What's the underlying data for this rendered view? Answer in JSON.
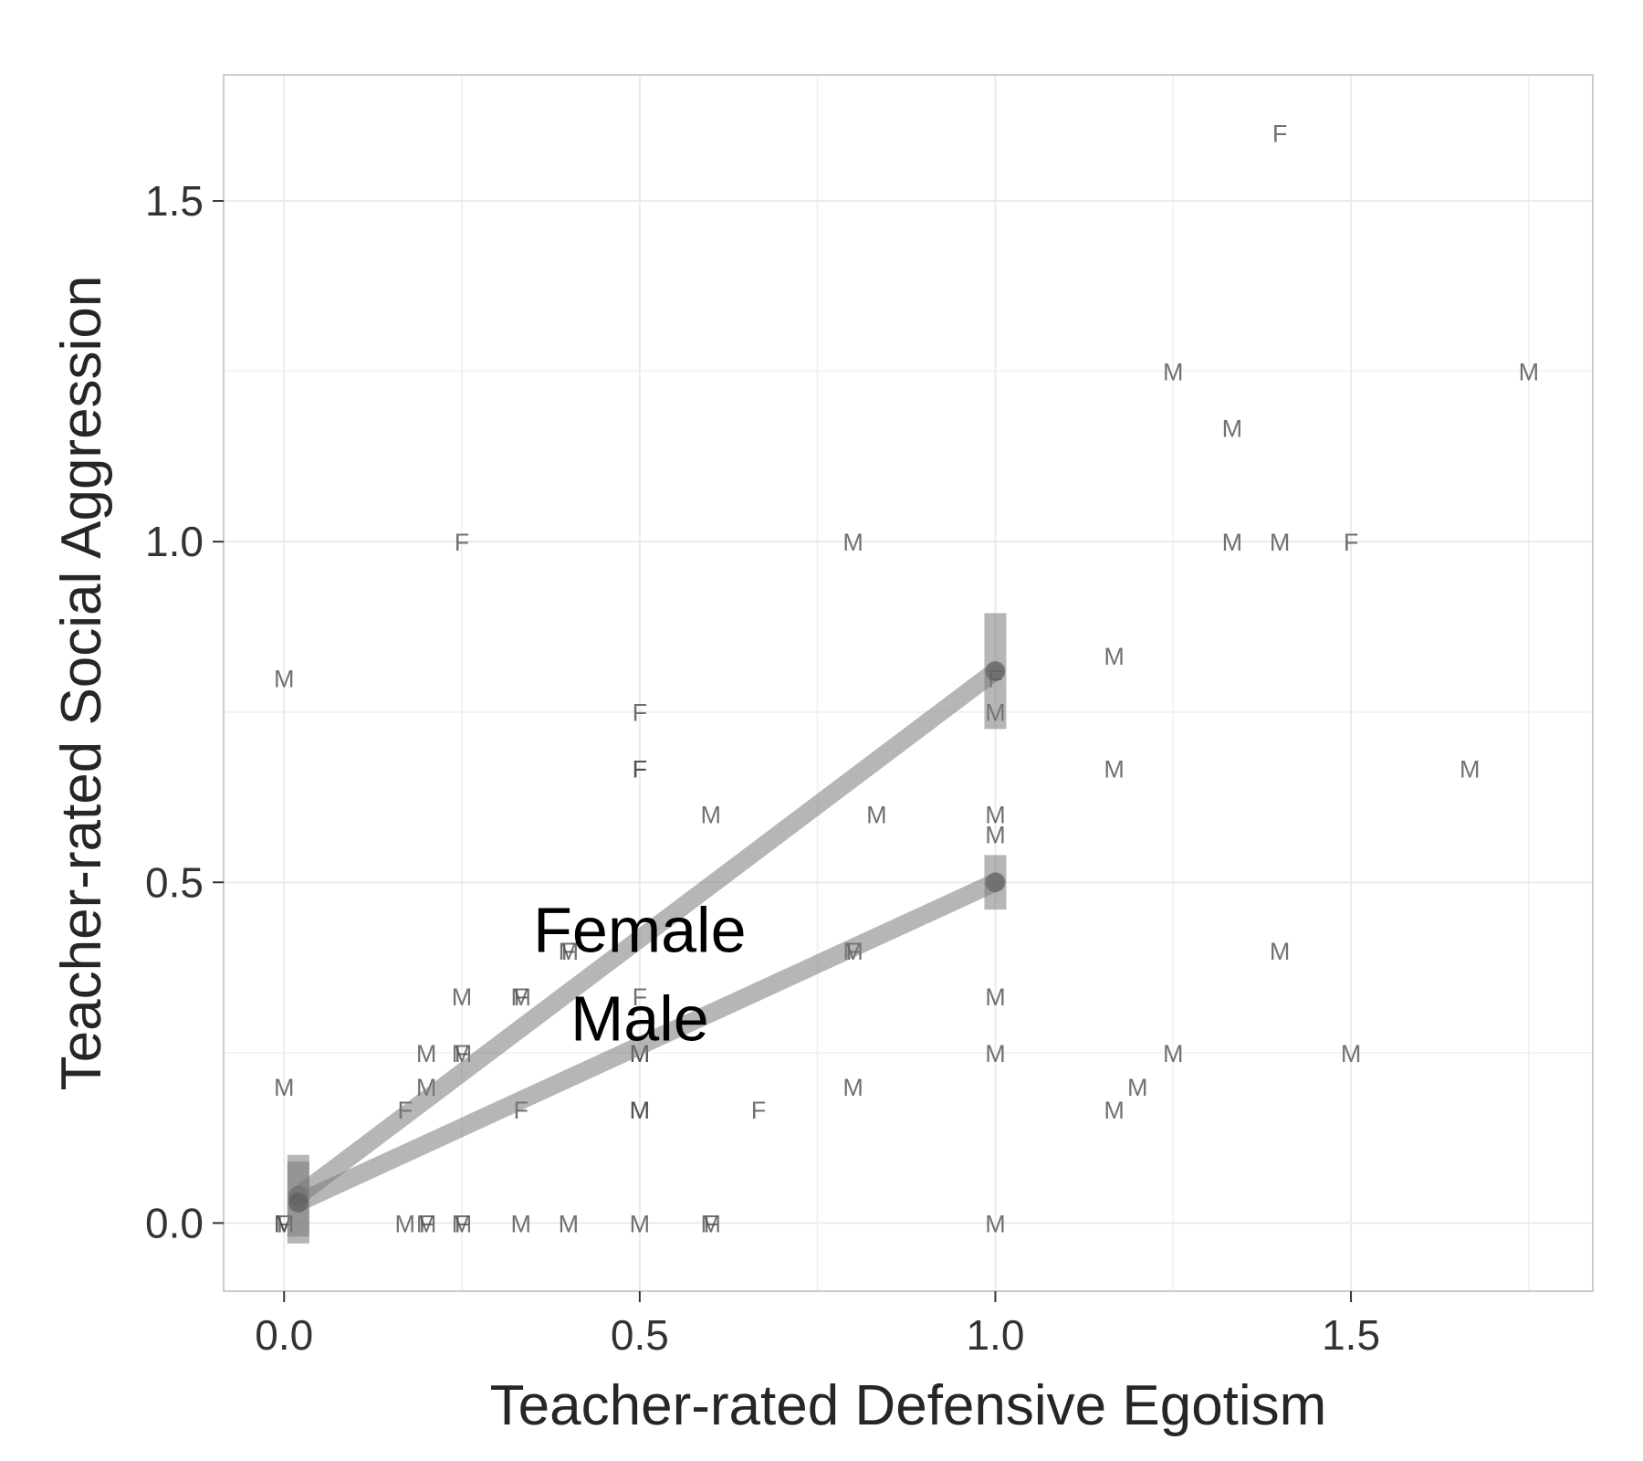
{
  "chart_data": {
    "type": "scatter",
    "title": "",
    "xlabel": "Teacher-rated Defensive Egotism",
    "ylabel": "Teacher-rated Social Aggression",
    "xlim": [
      -0.085,
      1.84
    ],
    "ylim": [
      -0.1,
      1.685
    ],
    "x_ticks": [
      "0.0",
      "0.5",
      "1.0",
      "1.5"
    ],
    "y_ticks": [
      "0.0",
      "0.5",
      "1.0",
      "1.5"
    ],
    "grid": true,
    "legend": "none",
    "points": [
      {
        "x": 0.0,
        "y": 0.0,
        "label": "M"
      },
      {
        "x": 0.0,
        "y": 0.0,
        "label": "F"
      },
      {
        "x": 0.0,
        "y": 0.0,
        "label": "M"
      },
      {
        "x": 0.0,
        "y": 0.8,
        "label": "M"
      },
      {
        "x": 0.0,
        "y": 0.2,
        "label": "M"
      },
      {
        "x": 0.17,
        "y": 0.0,
        "label": "M"
      },
      {
        "x": 0.17,
        "y": 0.167,
        "label": "F"
      },
      {
        "x": 0.2,
        "y": 0.0,
        "label": "M"
      },
      {
        "x": 0.2,
        "y": 0.0,
        "label": "F"
      },
      {
        "x": 0.2,
        "y": 0.25,
        "label": "M"
      },
      {
        "x": 0.2,
        "y": 0.2,
        "label": "M"
      },
      {
        "x": 0.25,
        "y": 0.0,
        "label": "M"
      },
      {
        "x": 0.25,
        "y": 0.0,
        "label": "F"
      },
      {
        "x": 0.25,
        "y": 0.25,
        "label": "M"
      },
      {
        "x": 0.25,
        "y": 0.25,
        "label": "F"
      },
      {
        "x": 0.25,
        "y": 0.333,
        "label": "M"
      },
      {
        "x": 0.25,
        "y": 1.0,
        "label": "F"
      },
      {
        "x": 0.333,
        "y": 0.0,
        "label": "M"
      },
      {
        "x": 0.333,
        "y": 0.333,
        "label": "M"
      },
      {
        "x": 0.333,
        "y": 0.333,
        "label": "F"
      },
      {
        "x": 0.333,
        "y": 0.167,
        "label": "F"
      },
      {
        "x": 0.4,
        "y": 0.0,
        "label": "M"
      },
      {
        "x": 0.4,
        "y": 0.4,
        "label": "M"
      },
      {
        "x": 0.4,
        "y": 0.4,
        "label": "F"
      },
      {
        "x": 0.5,
        "y": 0.0,
        "label": "M"
      },
      {
        "x": 0.5,
        "y": 0.167,
        "label": "M"
      },
      {
        "x": 0.5,
        "y": 0.167,
        "label": "M"
      },
      {
        "x": 0.5,
        "y": 0.25,
        "label": "M"
      },
      {
        "x": 0.5,
        "y": 0.25,
        "label": "M"
      },
      {
        "x": 0.5,
        "y": 0.333,
        "label": "F"
      },
      {
        "x": 0.5,
        "y": 0.667,
        "label": "F"
      },
      {
        "x": 0.5,
        "y": 0.667,
        "label": "F"
      },
      {
        "x": 0.5,
        "y": 0.75,
        "label": "F"
      },
      {
        "x": 0.6,
        "y": 0.0,
        "label": "M"
      },
      {
        "x": 0.6,
        "y": 0.0,
        "label": "F"
      },
      {
        "x": 0.6,
        "y": 0.6,
        "label": "M"
      },
      {
        "x": 0.667,
        "y": 0.167,
        "label": "F"
      },
      {
        "x": 0.8,
        "y": 0.2,
        "label": "M"
      },
      {
        "x": 0.8,
        "y": 0.4,
        "label": "M"
      },
      {
        "x": 0.8,
        "y": 0.4,
        "label": "F"
      },
      {
        "x": 0.8,
        "y": 1.0,
        "label": "M"
      },
      {
        "x": 0.833,
        "y": 0.6,
        "label": "M"
      },
      {
        "x": 1.0,
        "y": 0.0,
        "label": "M"
      },
      {
        "x": 1.0,
        "y": 0.25,
        "label": "M"
      },
      {
        "x": 1.0,
        "y": 0.333,
        "label": "M"
      },
      {
        "x": 1.0,
        "y": 0.571,
        "label": "M"
      },
      {
        "x": 1.0,
        "y": 0.6,
        "label": "M"
      },
      {
        "x": 1.0,
        "y": 0.75,
        "label": "M"
      },
      {
        "x": 1.0,
        "y": 0.8,
        "label": "F"
      },
      {
        "x": 1.167,
        "y": 0.167,
        "label": "M"
      },
      {
        "x": 1.2,
        "y": 0.2,
        "label": "M"
      },
      {
        "x": 1.167,
        "y": 0.667,
        "label": "M"
      },
      {
        "x": 1.167,
        "y": 0.833,
        "label": "M"
      },
      {
        "x": 1.25,
        "y": 0.25,
        "label": "M"
      },
      {
        "x": 1.25,
        "y": 1.25,
        "label": "M"
      },
      {
        "x": 1.333,
        "y": 1.0,
        "label": "M"
      },
      {
        "x": 1.333,
        "y": 1.167,
        "label": "M"
      },
      {
        "x": 1.4,
        "y": 0.4,
        "label": "M"
      },
      {
        "x": 1.4,
        "y": 1.0,
        "label": "M"
      },
      {
        "x": 1.4,
        "y": 1.6,
        "label": "F"
      },
      {
        "x": 1.5,
        "y": 0.25,
        "label": "M"
      },
      {
        "x": 1.5,
        "y": 1.0,
        "label": "F"
      },
      {
        "x": 1.667,
        "y": 0.667,
        "label": "M"
      },
      {
        "x": 1.75,
        "y": 1.25,
        "label": "M"
      }
    ],
    "series": [
      {
        "name": "Female",
        "x": [
          0.02,
          1.0
        ],
        "y": [
          0.04,
          0.81
        ],
        "error": [
          0.06,
          0.085
        ]
      },
      {
        "name": "Male",
        "x": [
          0.02,
          1.0
        ],
        "y": [
          0.03,
          0.5
        ],
        "error": [
          0.06,
          0.04
        ]
      }
    ],
    "series_labels": [
      {
        "text": "Female",
        "x": 0.5,
        "y": 0.43
      },
      {
        "text": "Male",
        "x": 0.5,
        "y": 0.3
      }
    ]
  }
}
